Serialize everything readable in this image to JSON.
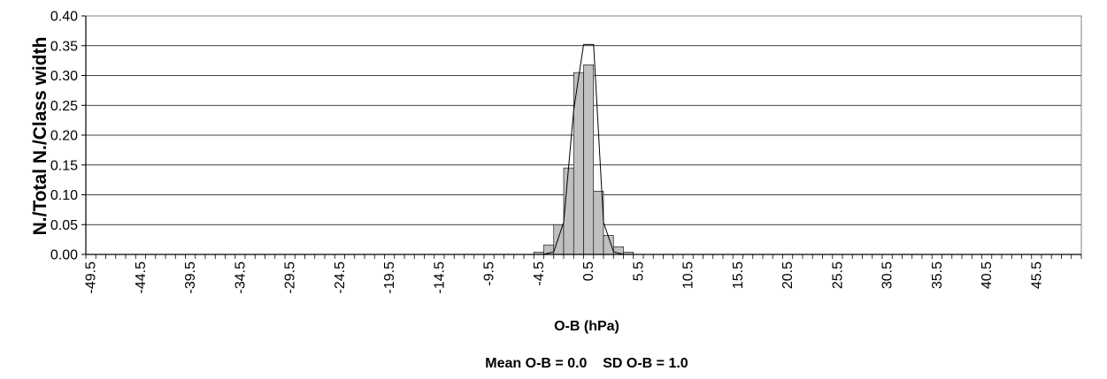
{
  "chart_data": {
    "type": "bar",
    "ylabel": "N./Total N./Class width",
    "xlabel": "O-B (hPa)",
    "footer": "Mean O-B = 0.0    SD O-B = 1.0",
    "ylim": [
      0,
      0.4
    ],
    "yticks": [
      "0.00",
      "0.05",
      "0.10",
      "0.15",
      "0.20",
      "0.25",
      "0.30",
      "0.35",
      "0.40"
    ],
    "x_range": [
      -50,
      50
    ],
    "class_width": 1,
    "xtick_labels": [
      "-49.5",
      "-44.5",
      "-39.5",
      "-34.5",
      "-29.5",
      "-24.5",
      "-19.5",
      "-14.5",
      "-9.5",
      "-4.5",
      "0.5",
      "5.5",
      "10.5",
      "15.5",
      "20.5",
      "25.5",
      "30.5",
      "35.5",
      "40.5",
      "45.5"
    ],
    "grid": true,
    "colors": {
      "bar_fill": "#c0c0c0",
      "bar_stroke": "#000000",
      "curve": "#000000",
      "grid": "#000000"
    },
    "series": [
      {
        "type": "histogram",
        "bin_centers": [
          -4.5,
          -3.5,
          -2.5,
          -1.5,
          -0.5,
          0.5,
          1.5,
          2.5,
          3.5,
          4.5
        ],
        "values": [
          0.004,
          0.016,
          0.05,
          0.145,
          0.305,
          0.318,
          0.106,
          0.032,
          0.013,
          0.004
        ]
      },
      {
        "type": "line",
        "description_source": "normal curve",
        "x": [
          -4,
          -3,
          -2,
          -1,
          0,
          1,
          2,
          3,
          4
        ],
        "y": [
          0.0001,
          0.0044,
          0.054,
          0.242,
          0.352,
          0.352,
          0.054,
          0.0044,
          0.0001
        ]
      }
    ]
  }
}
